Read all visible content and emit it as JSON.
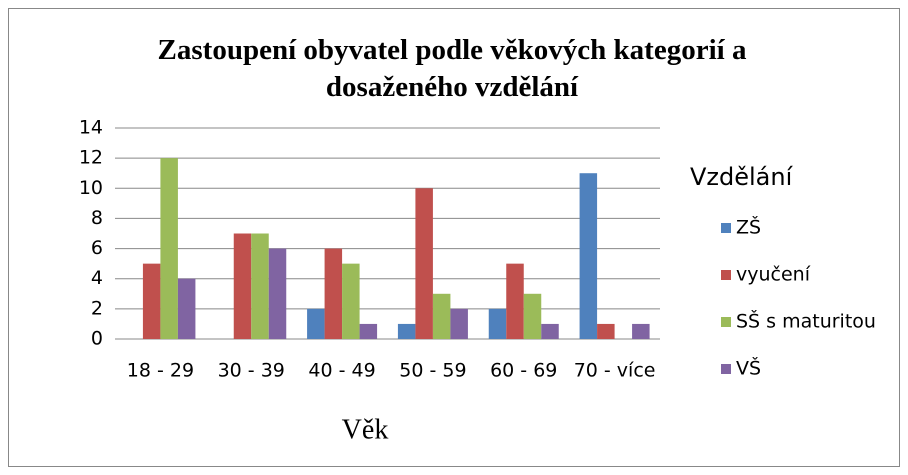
{
  "chart_data": {
    "type": "bar",
    "title": "Zastoupení obyvatel podle věkových kategorií a dosaženého vzdělání",
    "x_label": "Věk",
    "legend_title": "Vzdělání",
    "categories": [
      "18 - 29",
      "30 - 39",
      "40 - 49",
      "50 - 59",
      "60 - 69",
      "70 - více"
    ],
    "series": [
      {
        "name": "ZŠ",
        "color": "#4f81bd",
        "values": [
          0,
          0,
          2,
          1,
          2,
          11
        ]
      },
      {
        "name": "vyučení",
        "color": "#c0504d",
        "values": [
          5,
          7,
          6,
          10,
          5,
          1
        ]
      },
      {
        "name": "SŠ s maturitou",
        "color": "#9bbb59",
        "values": [
          12,
          7,
          5,
          3,
          3,
          0
        ]
      },
      {
        "name": "VŠ",
        "color": "#8064a2",
        "values": [
          4,
          6,
          1,
          2,
          1,
          1
        ]
      }
    ],
    "ylim": [
      0,
      14
    ],
    "yticks": [
      0,
      2,
      4,
      6,
      8,
      10,
      12,
      14
    ],
    "grid": true,
    "legend": "right"
  }
}
